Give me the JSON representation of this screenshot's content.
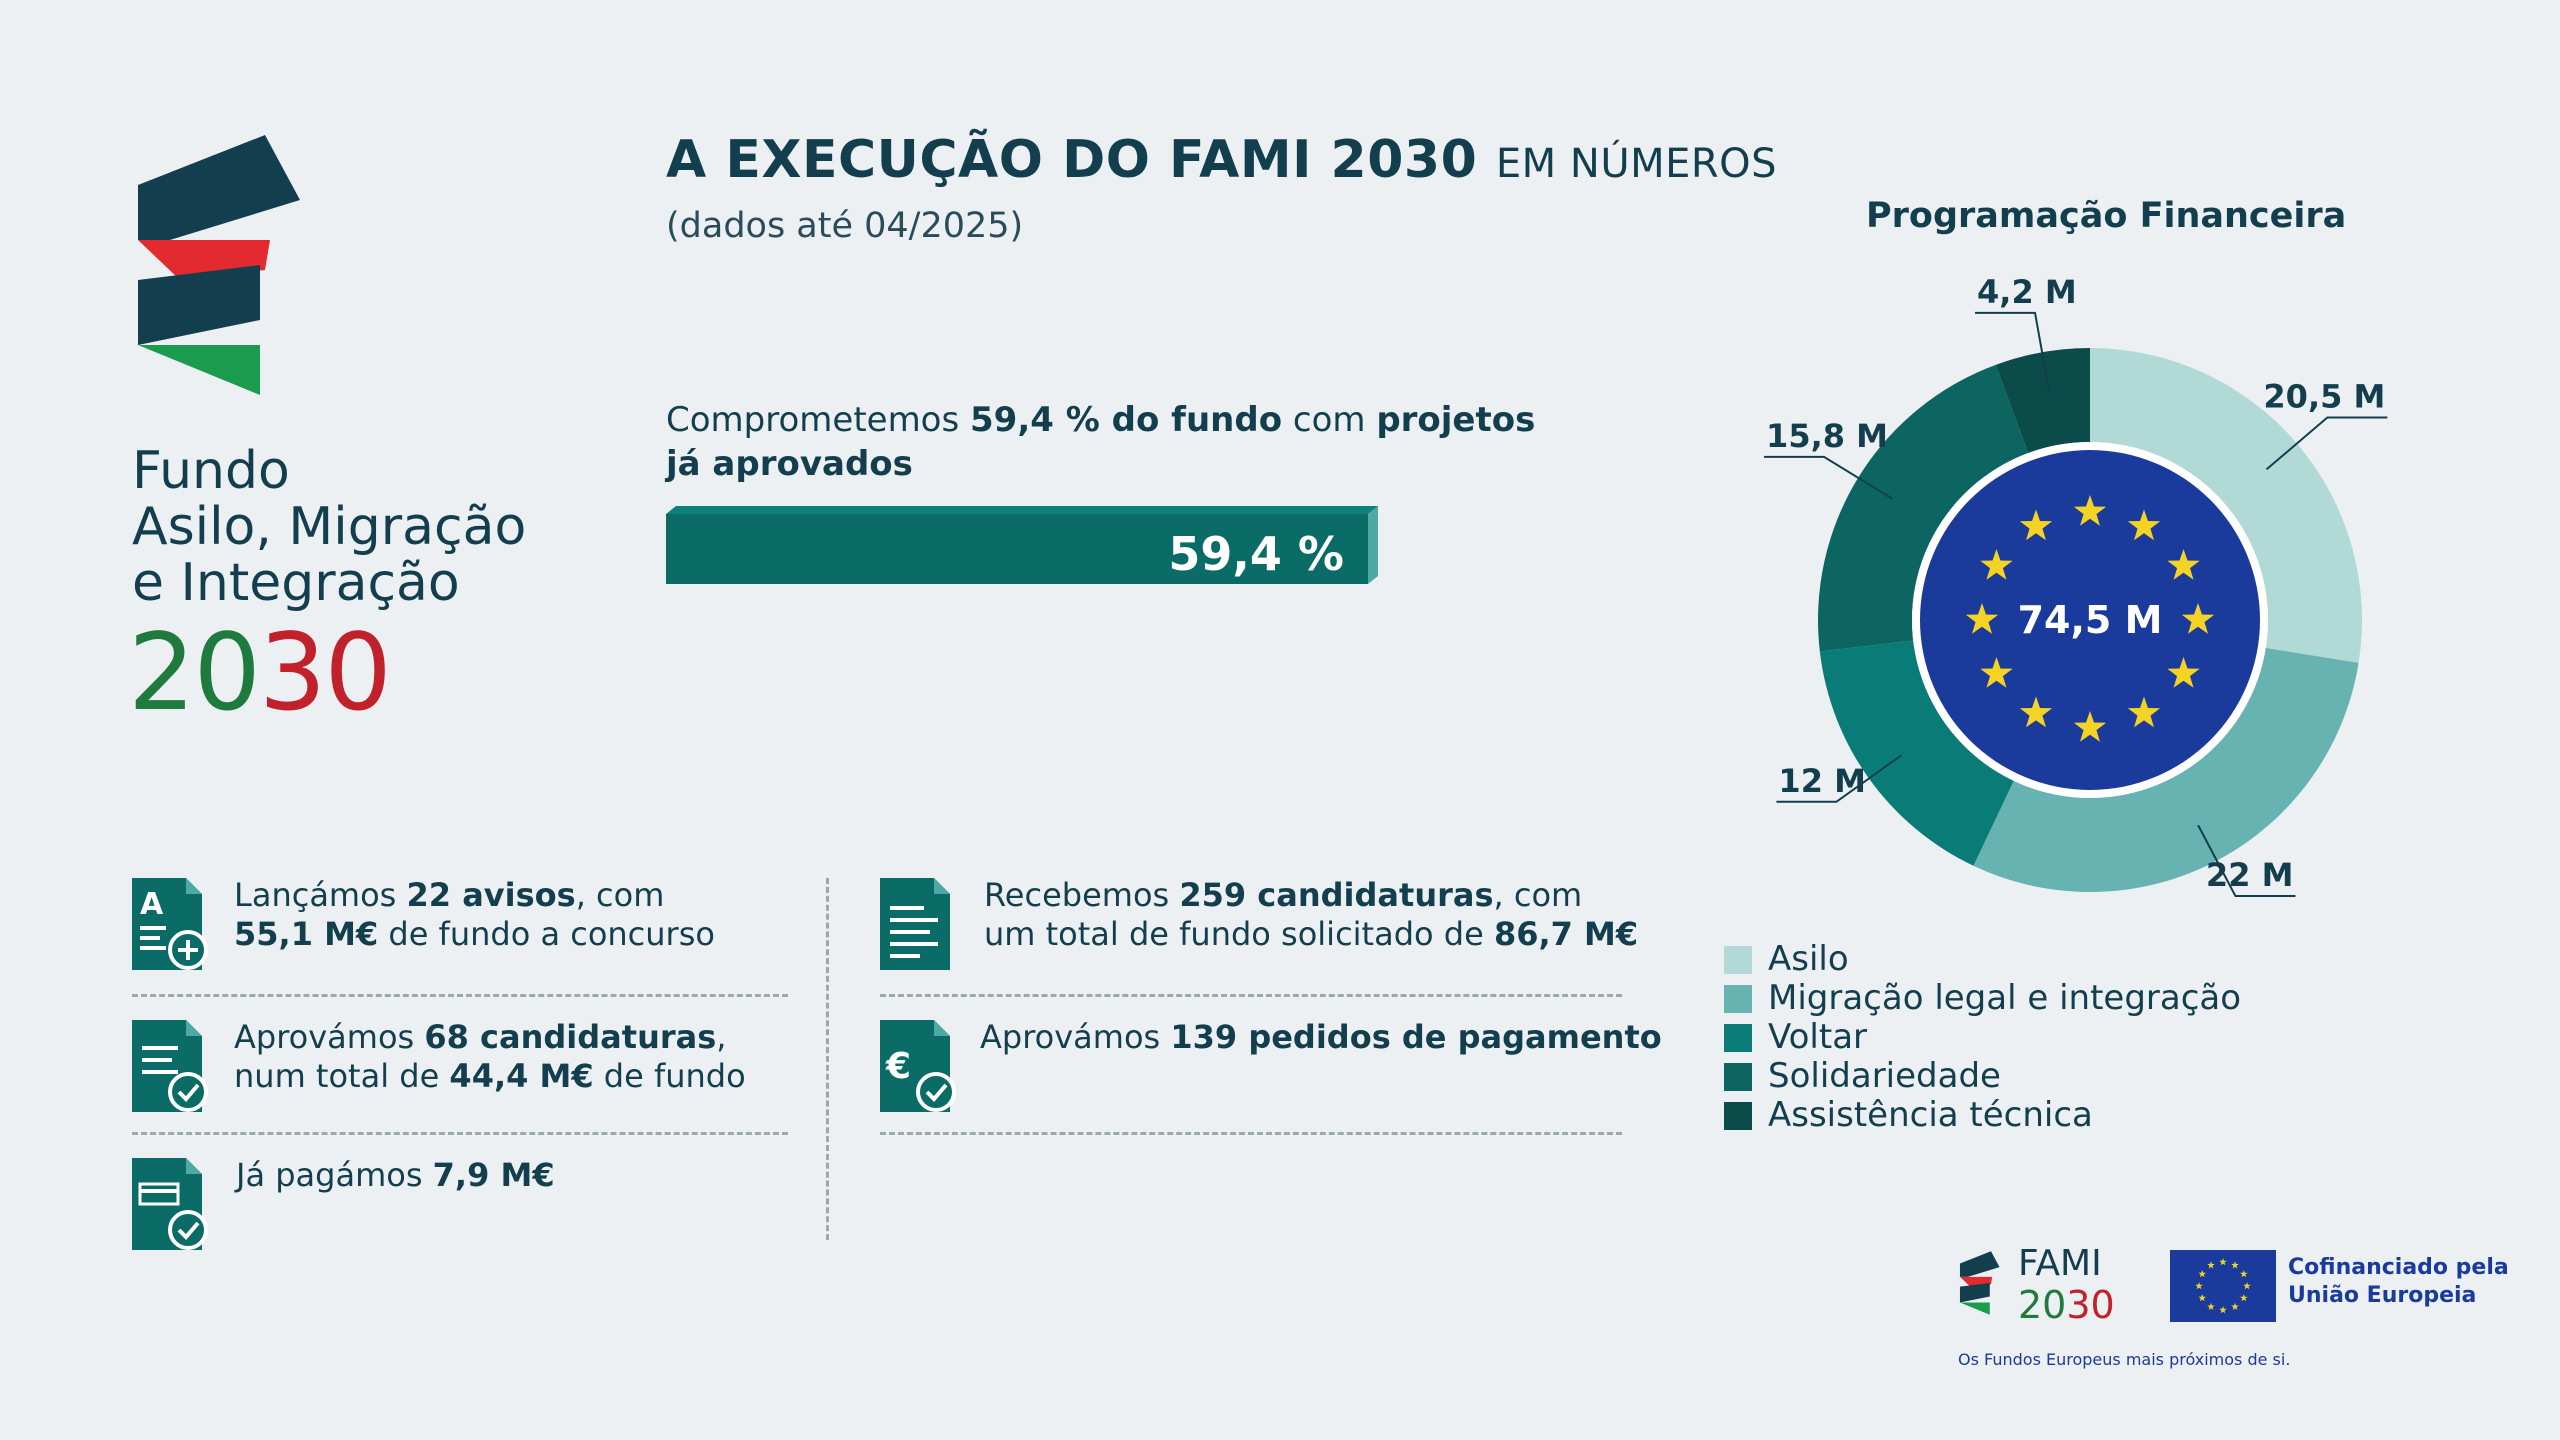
{
  "brand": {
    "line1": "Fundo",
    "line2": "Asilo, Migração",
    "line3": "e Integração",
    "year_part1": "20",
    "year_part2": "30"
  },
  "header": {
    "title_bold": "A EXECUÇÃO DO FAMI 2030",
    "title_light": "EM NÚMEROS",
    "subtitle": "(dados até 04/2025)"
  },
  "commitment": {
    "text_a": "Comprometemos ",
    "text_b": "59,4 % do fundo",
    "text_c": " com ",
    "text_d": "projetos",
    "text_e": "já aprovados",
    "bar_label": "59,4 %",
    "percent": 59.4
  },
  "stats": [
    {
      "a": "Lançámos ",
      "b": "22 avisos",
      "c": ", com",
      "d": "55,1 M€",
      "e": " de fundo a concurso"
    },
    {
      "a": "Recebemos ",
      "b": "259 candidaturas",
      "c": ", com",
      "d": "um total de fundo solicitado de ",
      "e": "86,7 M€"
    },
    {
      "a": "Aprovámos ",
      "b": "68 candidaturas",
      "c": ",",
      "d": "num total de ",
      "e": "44,4 M€",
      "f": " de fundo"
    },
    {
      "a": "Aprovámos ",
      "b": "139 pedidos de pagamento"
    },
    {
      "a": "Já pagámos ",
      "b": "7,9 M€"
    }
  ],
  "icons": {
    "doc_a_plus": "document-a-plus-icon",
    "doc_lines": "document-lines-icon",
    "doc_check": "document-check-icon",
    "doc_euro_check": "document-euro-check-icon",
    "doc_card_check": "document-card-check-icon"
  },
  "chart_data": {
    "type": "pie",
    "title": "Programação Financeira",
    "total_label": "74,5 M",
    "categories": [
      "Asilo",
      "Migração legal e integração",
      "Voltar",
      "Solidariedade",
      "Assistência técnica"
    ],
    "values": [
      20.5,
      22,
      12,
      15.8,
      4.2
    ],
    "value_labels": [
      "20,5 M",
      "22 M",
      "12 M",
      "15,8 M",
      "4,2 M"
    ],
    "colors": [
      "#b1d9d6",
      "#66b3b1",
      "#0a7c78",
      "#0c6560",
      "#0b4b49"
    ],
    "legend_position": "bottom"
  },
  "footer": {
    "fami_label": "FAMI",
    "fami_year_a": "20",
    "fami_year_b": "30",
    "eu_line1": "Cofinanciado pela",
    "eu_line2": "União Europeia",
    "tagline": "Os Fundos Europeus mais próximos de si."
  },
  "colors": {
    "navy": "#123e4e",
    "teal": "#0b6b66",
    "green": "#1f7a3e",
    "red": "#c0212b",
    "eu_blue": "#1a3a9c",
    "eu_star": "#f5d324"
  }
}
